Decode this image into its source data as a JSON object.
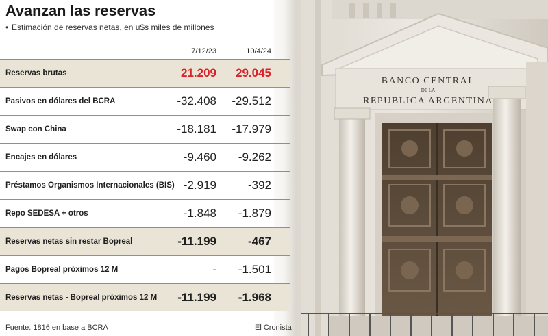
{
  "header": {
    "title": "Avanzan las reservas",
    "subtitle": "Estimación de reservas netas, en u$s miles de millones"
  },
  "chart_data": {
    "type": "table",
    "title": "Avanzan las reservas",
    "subtitle": "Estimación de reservas netas, en u$s miles de millones",
    "columns": [
      "7/12/23",
      "10/4/24"
    ],
    "rows": [
      {
        "label": "Reservas brutas",
        "values": [
          "21.209",
          "29.045"
        ],
        "style": "red"
      },
      {
        "label": "Pasivos en dólares del BCRA",
        "values": [
          "-32.408",
          "-29.512"
        ],
        "style": "normal"
      },
      {
        "label": "Swap con China",
        "values": [
          "-18.181",
          "-17.979"
        ],
        "style": "normal"
      },
      {
        "label": "Encajes en dólares",
        "values": [
          "-9.460",
          "-9.262"
        ],
        "style": "normal"
      },
      {
        "label": "Préstamos Organismos Internacionales (BIS)",
        "values": [
          "-2.919",
          "-392"
        ],
        "style": "normal"
      },
      {
        "label": "Repo SEDESA + otros",
        "values": [
          "-1.848",
          "-1.879"
        ],
        "style": "normal"
      },
      {
        "label": "Reservas netas sin restar Bopreal",
        "values": [
          "-11.199",
          "-467"
        ],
        "style": "bold"
      },
      {
        "label": "Pagos Bopreal próximos 12 M",
        "values": [
          "-",
          "-1.501"
        ],
        "style": "normal"
      },
      {
        "label": "Reservas netas - Bopreal próximos 12 M",
        "values": [
          "-11.199",
          "-1.968"
        ],
        "style": "bold"
      }
    ]
  },
  "footer": {
    "source": "Fuente: 1816 en base a BCRA",
    "credit": "El Cronista"
  },
  "photo": {
    "sign_line1": "BANCO CENTRAL",
    "sign_line2": "DE LA",
    "sign_line3": "REPUBLICA ARGENTINA"
  },
  "colors": {
    "highlight_red": "#d8232a",
    "shaded_row": "#e9e4d6",
    "stone": "#e6e1d8",
    "door": "#5b4a38"
  }
}
